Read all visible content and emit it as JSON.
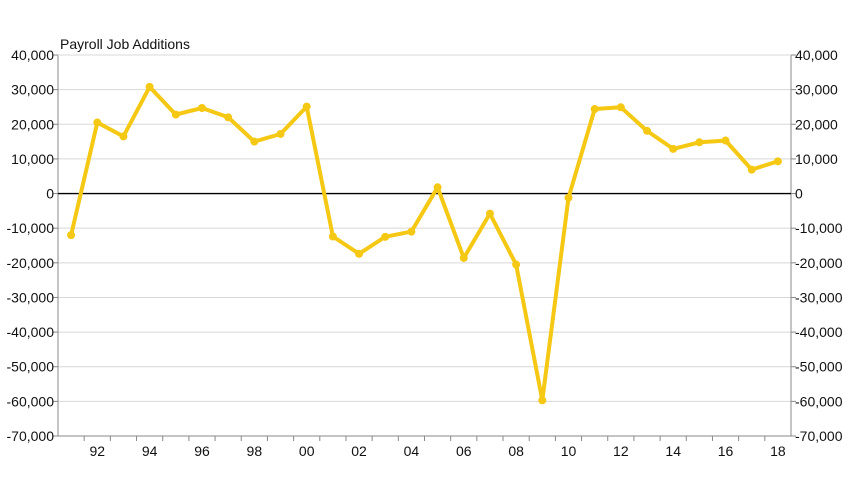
{
  "chart_data": {
    "type": "line",
    "title": "Payroll Job Additions",
    "xlabel": "",
    "ylabel": "",
    "x_tick_labels": [
      "92",
      "94",
      "96",
      "98",
      "00",
      "02",
      "04",
      "06",
      "08",
      "10",
      "12",
      "14",
      "16",
      "18"
    ],
    "x_ticks": [
      1992,
      1994,
      1996,
      1998,
      2000,
      2002,
      2004,
      2006,
      2008,
      2010,
      2012,
      2014,
      2016,
      2018
    ],
    "xlim": [
      1990.5,
      2018.5
    ],
    "ylim": [
      -70000,
      40000
    ],
    "y_ticks": [
      40000,
      30000,
      20000,
      10000,
      0,
      -10000,
      -20000,
      -30000,
      -40000,
      -50000,
      -60000,
      -70000
    ],
    "y_tick_labels": [
      "40,000",
      "30,000",
      "20,000",
      "10,000",
      "0",
      "-10,000",
      "-20,000",
      "-30,000",
      "-40,000",
      "-50,000",
      "-60,000",
      "-70,000"
    ],
    "grid": true,
    "zero_line": true,
    "y_axis_both_sides": true,
    "series": [
      {
        "color": "#F5C814",
        "x": [
          1991,
          1992,
          1993,
          1994,
          1995,
          1996,
          1997,
          1998,
          1999,
          2000,
          2001,
          2002,
          2003,
          2004,
          2005,
          2006,
          2007,
          2008,
          2009,
          2010,
          2011,
          2012,
          2013,
          2014,
          2015,
          2016,
          2017,
          2018
        ],
        "values": [
          -12000,
          20500,
          16500,
          30800,
          22800,
          24700,
          22000,
          15000,
          17200,
          25100,
          -12400,
          -17400,
          -12500,
          -11000,
          1800,
          -18600,
          -5800,
          -20500,
          -59700,
          -1200,
          24400,
          24900,
          18100,
          12900,
          14800,
          15300,
          6900,
          9300
        ]
      }
    ],
    "colors": {
      "line": "#F5C814",
      "grid": "#d8d8d8",
      "axis": "#888888",
      "zero": "#000000",
      "text": "#111111"
    }
  }
}
